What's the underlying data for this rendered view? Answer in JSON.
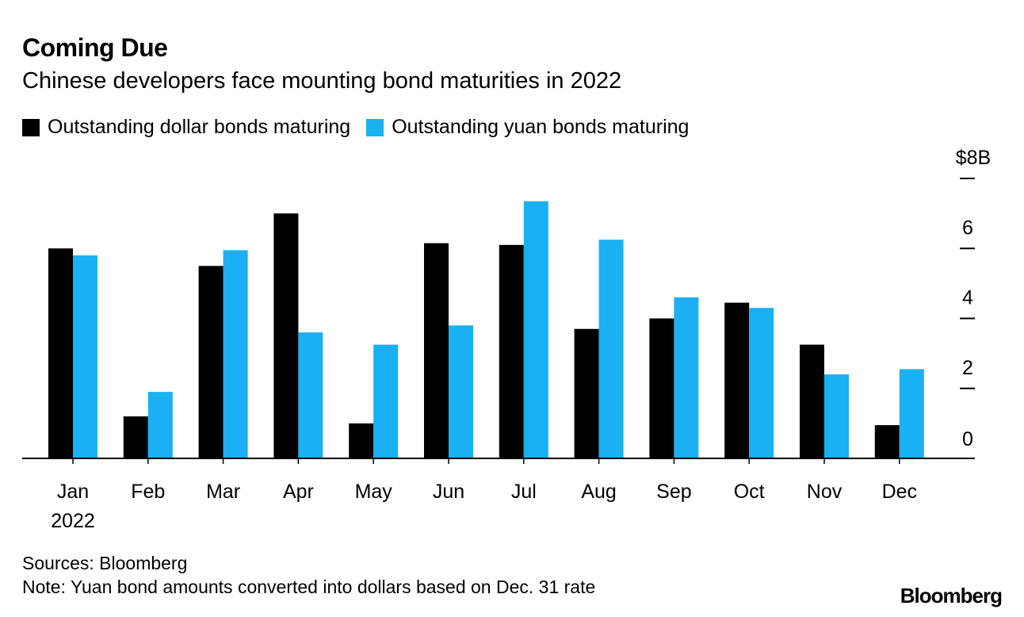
{
  "colors": {
    "dollar": "#000000",
    "yuan": "#1ab0f2",
    "axis": "#000000"
  },
  "header": {
    "title": "Coming Due",
    "subtitle": "Chinese developers face mounting bond maturities in 2022"
  },
  "footer": {
    "source": "Sources: Bloomberg",
    "note": "Note: Yuan bond amounts converted into dollars based on Dec. 31 rate",
    "logo": "Bloomberg"
  },
  "chart_data": {
    "type": "bar",
    "title": "Coming Due",
    "subtitle": "Chinese developers face mounting bond maturities in 2022",
    "categories": [
      "Jan",
      "Feb",
      "Mar",
      "Apr",
      "May",
      "Jun",
      "Jul",
      "Aug",
      "Sep",
      "Oct",
      "Nov",
      "Dec"
    ],
    "category_sublabel": {
      "Jan": "2022"
    },
    "series": [
      {
        "name": "Outstanding dollar bonds maturing",
        "color": "#000000",
        "values": [
          6.0,
          1.2,
          5.5,
          7.0,
          1.0,
          6.15,
          6.1,
          3.7,
          4.0,
          4.45,
          3.25,
          0.95
        ]
      },
      {
        "name": "Outstanding yuan bonds maturing",
        "color": "#1ab0f2",
        "values": [
          5.8,
          1.9,
          5.95,
          3.6,
          3.25,
          3.8,
          7.35,
          6.25,
          4.6,
          4.3,
          2.4,
          2.55
        ]
      }
    ],
    "ylim": [
      0,
      8
    ],
    "yticks": [
      {
        "value": 0,
        "label": "0"
      },
      {
        "value": 2,
        "label": "2"
      },
      {
        "value": 4,
        "label": "4"
      },
      {
        "value": 6,
        "label": "6"
      },
      {
        "value": 8,
        "label": "$8B"
      }
    ],
    "legend_position": "top-left",
    "grid": false
  }
}
